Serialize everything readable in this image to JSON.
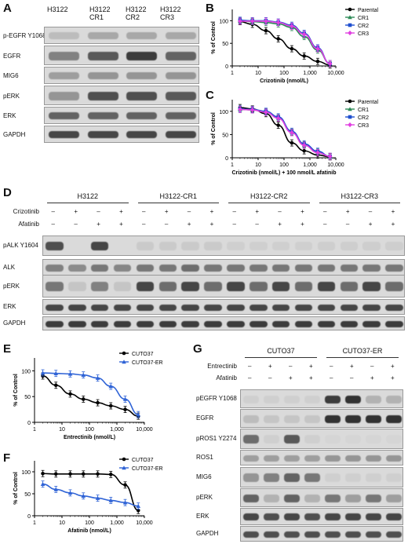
{
  "panel_letters": {
    "a": "A",
    "b": "B",
    "c": "C",
    "d": "D",
    "e": "E",
    "f": "F",
    "g": "G"
  },
  "panel_a": {
    "lanes": [
      "H3122",
      "H3122\nCR1",
      "H3122\nCR2",
      "H3122\nCR3"
    ],
    "rows": [
      "p-EGFR Y1068",
      "EGFR",
      "MIG6",
      "pERK",
      "ERK",
      "GAPDH"
    ]
  },
  "panel_d": {
    "groups": [
      "H3122",
      "H3122-CR1",
      "H3122-CR2",
      "H3122-CR3"
    ],
    "treatments": [
      {
        "name": "Crizotinib",
        "signs": [
          "–",
          "+",
          "–",
          "+"
        ]
      },
      {
        "name": "Afatinib",
        "signs": [
          "–",
          "–",
          "+",
          "+"
        ]
      }
    ],
    "rows": [
      "pALK Y1604",
      "ALK",
      "pERK",
      "ERK",
      "GAPDH"
    ]
  },
  "panel_g": {
    "groups": [
      "CUTO37",
      "CUTO37-ER"
    ],
    "treatments": [
      {
        "name": "Entrectinib",
        "signs": [
          "–",
          "+",
          "–",
          "+"
        ]
      },
      {
        "name": "Afatinib",
        "signs": [
          "–",
          "–",
          "+",
          "+"
        ]
      }
    ],
    "rows": [
      "pEGFR Y1068",
      "EGFR",
      "pROS1 Y2274",
      "ROS1",
      "MIG6",
      "pERK",
      "ERK",
      "GAPDH"
    ]
  },
  "chart_data": [
    {
      "panel": "B",
      "type": "line",
      "xscale": "log",
      "xlabel": "Crizotinib (nmol/L)",
      "ylabel": "% of Control",
      "xlim": [
        1,
        10000
      ],
      "ylim": [
        0,
        125
      ],
      "xticks": [
        "1",
        "10",
        "100",
        "1,000",
        "10,000"
      ],
      "yticks": [
        "0",
        "50",
        "100"
      ],
      "legend_position": "top-right",
      "series": [
        {
          "name": "Parental",
          "color": "#000000",
          "marker": "circle",
          "x": [
            2,
            6,
            20,
            60,
            200,
            600,
            2000,
            6000
          ],
          "y": [
            98,
            92,
            78,
            60,
            38,
            22,
            10,
            2
          ]
        },
        {
          "name": "CR1",
          "color": "#2e8b57",
          "marker": "triangle",
          "x": [
            2,
            6,
            20,
            60,
            200,
            600,
            2000,
            6000
          ],
          "y": [
            100,
            98,
            96,
            93,
            85,
            65,
            35,
            5
          ]
        },
        {
          "name": "CR2",
          "color": "#1f4fcf",
          "marker": "square",
          "x": [
            2,
            6,
            20,
            60,
            200,
            600,
            2000,
            6000
          ],
          "y": [
            101,
            100,
            100,
            97,
            90,
            72,
            40,
            5
          ]
        },
        {
          "name": "CR3",
          "color": "#e040e0",
          "marker": "diamond",
          "x": [
            2,
            6,
            20,
            60,
            200,
            600,
            2000,
            6000
          ],
          "y": [
            99,
            99,
            99,
            96,
            88,
            70,
            38,
            5
          ]
        }
      ]
    },
    {
      "panel": "C",
      "type": "line",
      "xscale": "log",
      "xlabel": "Crizotinib (nmol/L) + 100 nmol/L afatinib",
      "ylabel": "% of Control",
      "xlim": [
        1,
        10000
      ],
      "ylim": [
        0,
        125
      ],
      "xticks": [
        "1",
        "10",
        "100",
        "1,000",
        "10,000"
      ],
      "yticks": [
        "0",
        "50",
        "100"
      ],
      "legend_position": "top-right",
      "series": [
        {
          "name": "Parental",
          "color": "#000000",
          "marker": "circle",
          "x": [
            2,
            6,
            20,
            60,
            200,
            600,
            2000,
            6000
          ],
          "y": [
            108,
            105,
            95,
            70,
            32,
            15,
            6,
            2
          ]
        },
        {
          "name": "CR1",
          "color": "#2e8b57",
          "marker": "triangle",
          "x": [
            2,
            6,
            20,
            60,
            200,
            600,
            2000,
            6000
          ],
          "y": [
            104,
            103,
            99,
            86,
            55,
            28,
            12,
            3
          ]
        },
        {
          "name": "CR2",
          "color": "#1f4fcf",
          "marker": "square",
          "x": [
            2,
            6,
            20,
            60,
            200,
            600,
            2000,
            6000
          ],
          "y": [
            105,
            104,
            100,
            88,
            57,
            30,
            14,
            3
          ]
        },
        {
          "name": "CR3",
          "color": "#e040e0",
          "marker": "diamond",
          "x": [
            2,
            6,
            20,
            60,
            200,
            600,
            2000,
            6000
          ],
          "y": [
            104,
            103,
            98,
            85,
            54,
            27,
            11,
            3
          ]
        }
      ]
    },
    {
      "panel": "E",
      "type": "line",
      "xscale": "log",
      "xlabel": "Entrectinib (nmol/L)",
      "ylabel": "% of Control",
      "xlim": [
        1,
        10000
      ],
      "ylim": [
        0,
        125
      ],
      "xticks": [
        "1",
        "10",
        "100",
        "1,000",
        "10,000"
      ],
      "yticks": [
        "0",
        "50",
        "100"
      ],
      "legend_position": "top-right",
      "series": [
        {
          "name": "CUTO37",
          "color": "#000000",
          "marker": "circle",
          "x": [
            2,
            6,
            20,
            60,
            200,
            600,
            2000,
            6000
          ],
          "y": [
            90,
            72,
            55,
            45,
            38,
            32,
            25,
            12
          ]
        },
        {
          "name": "CUTO37-ER",
          "color": "#2f63d6",
          "marker": "triangle",
          "x": [
            2,
            6,
            20,
            60,
            200,
            600,
            2000,
            6000
          ],
          "y": [
            96,
            95,
            94,
            92,
            86,
            70,
            45,
            15
          ]
        }
      ]
    },
    {
      "panel": "F",
      "type": "line",
      "xscale": "log",
      "xlabel": "Afatinib (nmol/L)",
      "ylabel": "% of Control",
      "xlim": [
        1,
        10000
      ],
      "ylim": [
        0,
        125
      ],
      "xticks": [
        "1",
        "10",
        "100",
        "1,000",
        "10,000"
      ],
      "yticks": [
        "0",
        "50",
        "100"
      ],
      "legend_position": "top-right",
      "series": [
        {
          "name": "CUTO37",
          "color": "#000000",
          "marker": "circle",
          "x": [
            2,
            6,
            20,
            60,
            200,
            600,
            2000,
            6000
          ],
          "y": [
            96,
            95,
            95,
            95,
            95,
            94,
            70,
            12
          ]
        },
        {
          "name": "CUTO37-ER",
          "color": "#2f63d6",
          "marker": "triangle",
          "x": [
            2,
            6,
            20,
            60,
            200,
            600,
            2000,
            6000
          ],
          "y": [
            72,
            60,
            52,
            45,
            40,
            35,
            30,
            22
          ]
        }
      ]
    }
  ]
}
